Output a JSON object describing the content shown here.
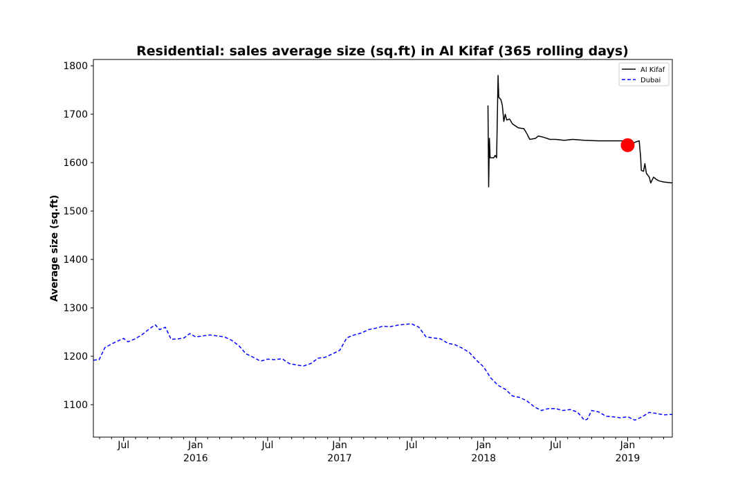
{
  "chart_data": {
    "type": "line",
    "title": "Residential: sales average size (sq.ft) in Al Kifaf (365 rolling days)",
    "xlabel": "",
    "ylabel": "Average size (sq.ft)",
    "xlim": [
      2015.29,
      2019.31
    ],
    "ylim": [
      1033,
      1813
    ],
    "yticks": [
      1100,
      1200,
      1300,
      1400,
      1500,
      1600,
      1700,
      1800
    ],
    "xticks": [
      {
        "x": 2015.5,
        "label": "Jul",
        "year": ""
      },
      {
        "x": 2016.0,
        "label": "Jan",
        "year": "2016"
      },
      {
        "x": 2016.5,
        "label": "Jul",
        "year": ""
      },
      {
        "x": 2017.0,
        "label": "Jan",
        "year": "2017"
      },
      {
        "x": 2017.5,
        "label": "Jul",
        "year": ""
      },
      {
        "x": 2018.0,
        "label": "Jan",
        "year": "2018"
      },
      {
        "x": 2018.5,
        "label": "Jul",
        "year": ""
      },
      {
        "x": 2019.0,
        "label": "Jan",
        "year": "2019"
      }
    ],
    "minor_ticks_per_year": 12,
    "legend": [
      "Al Kifaf",
      "Dubai"
    ],
    "legend_position": "top-right",
    "grid": false,
    "series": [
      {
        "name": "Al Kifaf",
        "color": "#000000",
        "style": "solid",
        "points": [
          [
            2018.03,
            1718
          ],
          [
            2018.035,
            1550
          ],
          [
            2018.04,
            1650
          ],
          [
            2018.045,
            1610
          ],
          [
            2018.07,
            1610
          ],
          [
            2018.08,
            1615
          ],
          [
            2018.09,
            1610
          ],
          [
            2018.1,
            1780
          ],
          [
            2018.105,
            1735
          ],
          [
            2018.12,
            1730
          ],
          [
            2018.13,
            1718
          ],
          [
            2018.14,
            1685
          ],
          [
            2018.15,
            1700
          ],
          [
            2018.16,
            1688
          ],
          [
            2018.18,
            1690
          ],
          [
            2018.2,
            1680
          ],
          [
            2018.24,
            1672
          ],
          [
            2018.28,
            1670
          ],
          [
            2018.3,
            1660
          ],
          [
            2018.32,
            1648
          ],
          [
            2018.36,
            1650
          ],
          [
            2018.38,
            1655
          ],
          [
            2018.42,
            1652
          ],
          [
            2018.46,
            1648
          ],
          [
            2018.5,
            1648
          ],
          [
            2018.56,
            1646
          ],
          [
            2018.62,
            1648
          ],
          [
            2018.7,
            1646
          ],
          [
            2018.8,
            1645
          ],
          [
            2018.9,
            1645
          ],
          [
            2019.0,
            1645
          ],
          [
            2019.03,
            1638
          ],
          [
            2019.05,
            1642
          ],
          [
            2019.08,
            1645
          ],
          [
            2019.09,
            1612
          ],
          [
            2019.095,
            1584
          ],
          [
            2019.11,
            1582
          ],
          [
            2019.12,
            1598
          ],
          [
            2019.13,
            1578
          ],
          [
            2019.15,
            1570
          ],
          [
            2019.16,
            1558
          ],
          [
            2019.18,
            1570
          ],
          [
            2019.2,
            1565
          ],
          [
            2019.22,
            1562
          ],
          [
            2019.25,
            1560
          ],
          [
            2019.31,
            1558
          ]
        ]
      },
      {
        "name": "Dubai",
        "color": "#0000ff",
        "style": "dashed",
        "points": [
          [
            2015.29,
            1192
          ],
          [
            2015.33,
            1193
          ],
          [
            2015.37,
            1218
          ],
          [
            2015.42,
            1226
          ],
          [
            2015.47,
            1233
          ],
          [
            2015.5,
            1237
          ],
          [
            2015.53,
            1230
          ],
          [
            2015.58,
            1236
          ],
          [
            2015.63,
            1245
          ],
          [
            2015.68,
            1257
          ],
          [
            2015.72,
            1265
          ],
          [
            2015.75,
            1255
          ],
          [
            2015.79,
            1260
          ],
          [
            2015.83,
            1235
          ],
          [
            2015.88,
            1236
          ],
          [
            2015.92,
            1238
          ],
          [
            2015.96,
            1247
          ],
          [
            2016.0,
            1240
          ],
          [
            2016.05,
            1242
          ],
          [
            2016.1,
            1244
          ],
          [
            2016.15,
            1242
          ],
          [
            2016.2,
            1240
          ],
          [
            2016.25,
            1233
          ],
          [
            2016.3,
            1222
          ],
          [
            2016.35,
            1205
          ],
          [
            2016.4,
            1198
          ],
          [
            2016.45,
            1190
          ],
          [
            2016.5,
            1194
          ],
          [
            2016.55,
            1193
          ],
          [
            2016.6,
            1195
          ],
          [
            2016.65,
            1185
          ],
          [
            2016.7,
            1182
          ],
          [
            2016.75,
            1180
          ],
          [
            2016.8,
            1185
          ],
          [
            2016.85,
            1196
          ],
          [
            2016.9,
            1198
          ],
          [
            2016.95,
            1205
          ],
          [
            2017.0,
            1212
          ],
          [
            2017.05,
            1238
          ],
          [
            2017.1,
            1244
          ],
          [
            2017.15,
            1248
          ],
          [
            2017.2,
            1255
          ],
          [
            2017.25,
            1258
          ],
          [
            2017.3,
            1262
          ],
          [
            2017.35,
            1261
          ],
          [
            2017.4,
            1264
          ],
          [
            2017.45,
            1266
          ],
          [
            2017.5,
            1267
          ],
          [
            2017.55,
            1260
          ],
          [
            2017.6,
            1240
          ],
          [
            2017.65,
            1238
          ],
          [
            2017.7,
            1236
          ],
          [
            2017.75,
            1227
          ],
          [
            2017.8,
            1224
          ],
          [
            2017.85,
            1217
          ],
          [
            2017.9,
            1208
          ],
          [
            2017.95,
            1192
          ],
          [
            2018.0,
            1178
          ],
          [
            2018.05,
            1155
          ],
          [
            2018.1,
            1140
          ],
          [
            2018.15,
            1132
          ],
          [
            2018.2,
            1118
          ],
          [
            2018.25,
            1115
          ],
          [
            2018.3,
            1108
          ],
          [
            2018.35,
            1096
          ],
          [
            2018.4,
            1088
          ],
          [
            2018.45,
            1092
          ],
          [
            2018.5,
            1092
          ],
          [
            2018.55,
            1088
          ],
          [
            2018.6,
            1090
          ],
          [
            2018.65,
            1085
          ],
          [
            2018.7,
            1068
          ],
          [
            2018.72,
            1070
          ],
          [
            2018.75,
            1088
          ],
          [
            2018.8,
            1085
          ],
          [
            2018.85,
            1076
          ],
          [
            2018.9,
            1075
          ],
          [
            2018.95,
            1073
          ],
          [
            2019.0,
            1075
          ],
          [
            2019.05,
            1068
          ],
          [
            2019.1,
            1075
          ],
          [
            2019.15,
            1084
          ],
          [
            2019.2,
            1082
          ],
          [
            2019.25,
            1079
          ],
          [
            2019.31,
            1080
          ]
        ]
      }
    ],
    "highlight": {
      "x": 2019.0,
      "y": 1636,
      "color": "#ff0000"
    }
  }
}
